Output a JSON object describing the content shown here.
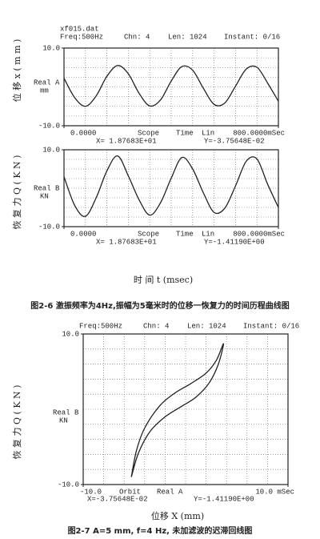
{
  "chart_data": [
    {
      "type": "line",
      "header": {
        "file": "xf015.dat",
        "freq": "Freq:500Hz",
        "chn": "Chn: 4",
        "len": "Len: 1024",
        "instant": "Instant: 0/16"
      },
      "side_label": "位 移 x ( m m )",
      "channel": "Real A",
      "channel_unit": "mm",
      "footer": {
        "mode": "Scope",
        "axis": "Time",
        "scale": "Lin",
        "x_readout": "X= 1.87683E+01",
        "y_readout": "Y=-3.75648E-02"
      },
      "x": [
        0,
        40,
        80,
        120,
        160,
        200,
        240,
        280,
        320,
        360,
        400,
        440,
        480,
        520,
        560,
        600,
        640,
        680,
        720,
        760,
        800
      ],
      "values": [
        2.24,
        -2.78,
        -4.99,
        -2.33,
        2.73,
        5.49,
        3.38,
        -1.63,
        -4.9,
        -3.37,
        1.5,
        5.24,
        4.3,
        -0.35,
        -4.5,
        -4.15,
        0.19,
        4.59,
        5.05,
        0.96,
        -3.71
      ],
      "color": "#222222",
      "grid": true,
      "xlim": [
        0,
        800
      ],
      "xticks": [
        {
          "value": 0,
          "label": "0.0000"
        },
        {
          "value": 800,
          "label": "800.0000mSec"
        }
      ],
      "ylim": [
        -10,
        10
      ],
      "yticks": [
        {
          "value": 10,
          "label": "10.0"
        },
        {
          "value": -10,
          "label": "-10.0"
        }
      ]
    },
    {
      "type": "line",
      "side_label": "恢 复 力 Q ( K N )",
      "channel": "Real B",
      "channel_unit": "KN",
      "footer": {
        "mode": "Scope",
        "axis": "Time",
        "scale": "Lin",
        "x_readout": "X= 1.87683E+01",
        "y_readout": "Y=-1.41190E+00"
      },
      "x_label": "时 间    t (msec)",
      "x": [
        0,
        40,
        80,
        120,
        160,
        200,
        240,
        280,
        320,
        360,
        400,
        440,
        480,
        520,
        560,
        600,
        640,
        680,
        720,
        760,
        800
      ],
      "values": [
        3.0,
        -4.5,
        -7.3,
        -2.5,
        4.5,
        8.4,
        3.2,
        -3.0,
        -7.0,
        -3.8,
        2.6,
        8.0,
        5.0,
        -1.2,
        -6.3,
        -5.2,
        0.6,
        7.0,
        7.6,
        1.0,
        -5.0
      ],
      "color": "#222222",
      "grid": true,
      "xlim": [
        0,
        800
      ],
      "xticks": [
        {
          "value": 0,
          "label": "0.0000"
        },
        {
          "value": 800,
          "label": "800.0000mSec"
        }
      ],
      "ylim": [
        -10,
        10
      ],
      "yticks": [
        {
          "value": 10,
          "label": "10.0"
        },
        {
          "value": -10,
          "label": "-10.0"
        }
      ]
    },
    {
      "type": "line",
      "header": {
        "freq": "Freq:500Hz",
        "chn": "Chn: 4",
        "len": "Len: 1024",
        "instant": "Instant: 0/16"
      },
      "side_label": "恢 复 力 Q ( K N )",
      "channel": "Real B",
      "channel_unit": "KN",
      "footer": {
        "mode": "Orbit",
        "axis": "Real A",
        "x_readout": "X=-3.75648E-02",
        "y_readout": "Y=-1.41190E+00"
      },
      "x_label": "位移   X (mm)",
      "x": [
        -5.3,
        -4.8,
        -4,
        -2.5,
        -1,
        0.5,
        2,
        3,
        3.7,
        3.2,
        2.3,
        1,
        -0.5,
        -2,
        -3.5,
        -4.6,
        -5.3
      ],
      "values": [
        -9.0,
        -5.5,
        -2.5,
        0.5,
        2.2,
        3.4,
        4.8,
        6.5,
        8.7,
        6.0,
        3.5,
        1.6,
        0.3,
        -1,
        -3,
        -5.8,
        -9.0
      ],
      "color": "#222222",
      "grid": true,
      "xlim": [
        -10,
        10
      ],
      "xticks": [
        {
          "value": -10,
          "label": "-10.0"
        },
        {
          "value": 10,
          "label": "10.0 mSec"
        }
      ],
      "ylim": [
        -10,
        10
      ],
      "yticks": [
        {
          "value": 10,
          "label": "10.0"
        },
        {
          "value": -10,
          "label": "-10.0"
        }
      ]
    }
  ],
  "captions": [
    "图2-6 激振频率为4Hz,振幅为5毫米时的位移一恢复力的时间历程曲线图",
    "图2-7  A=5 mm,  f=4 Hz,  未加滤波的迟滞回线图"
  ]
}
